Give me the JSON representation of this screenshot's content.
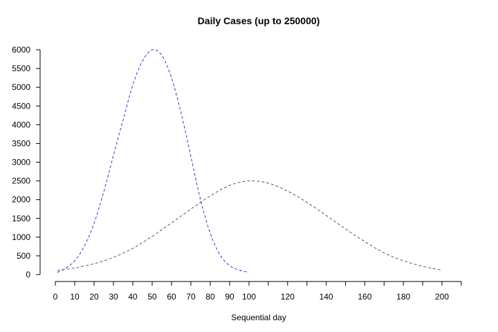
{
  "chart_data": {
    "type": "line",
    "title": "Daily Cases (up to 250000)",
    "xlabel": "Sequential day",
    "ylabel": "",
    "xlim": [
      0,
      200
    ],
    "ylim": [
      0,
      6000
    ],
    "x_ticks": [
      0,
      10,
      20,
      30,
      40,
      50,
      60,
      70,
      80,
      90,
      100,
      110,
      120,
      130,
      140,
      150,
      160,
      170,
      180,
      190,
      200,
      210
    ],
    "x_tick_labels": [
      "0",
      "10",
      "20",
      "30",
      "40",
      "50",
      "60",
      "70",
      "80",
      "90",
      "100",
      "",
      "120",
      "",
      "140",
      "",
      "160",
      "",
      "180",
      "",
      "200",
      ""
    ],
    "y_ticks": [
      0,
      500,
      1000,
      1500,
      2000,
      2500,
      3000,
      3500,
      4000,
      4500,
      5000,
      5500,
      6000
    ],
    "y_tick_labels": [
      "0",
      "500",
      "1000",
      "1500",
      "2000",
      "2500",
      "3000",
      "3500",
      "4000",
      "4500",
      "5000",
      "5500",
      "6000"
    ],
    "grid": false,
    "series": [
      {
        "color": "#3333dd",
        "style": "dashed",
        "x": [
          1,
          5,
          10,
          15,
          20,
          25,
          30,
          35,
          40,
          45,
          50,
          55,
          60,
          65,
          70,
          75,
          80,
          85,
          90,
          95,
          100
        ],
        "y": [
          60,
          160,
          370,
          760,
          1370,
          2210,
          3180,
          4130,
          5060,
          5700,
          6000,
          5850,
          5250,
          4300,
          3150,
          2000,
          1100,
          530,
          240,
          120,
          60
        ]
      },
      {
        "color": "#555566",
        "style": "dashed",
        "x": [
          1,
          10,
          20,
          30,
          40,
          50,
          60,
          70,
          80,
          90,
          100,
          110,
          120,
          130,
          140,
          150,
          160,
          170,
          180,
          190,
          200
        ],
        "y": [
          110,
          180,
          290,
          460,
          700,
          1020,
          1380,
          1750,
          2100,
          2380,
          2500,
          2440,
          2230,
          1930,
          1580,
          1220,
          880,
          580,
          370,
          220,
          120
        ]
      }
    ]
  }
}
